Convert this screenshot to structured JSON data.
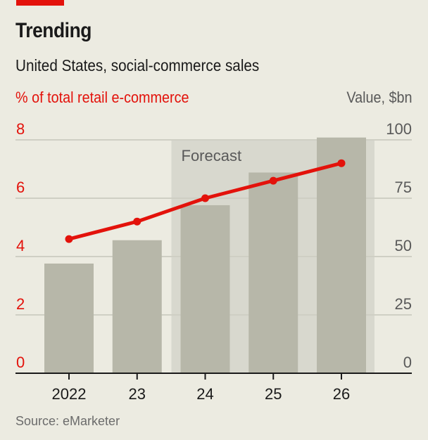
{
  "header": {
    "title": "Trending",
    "subtitle": "United States, social-commerce sales",
    "left_axis_label": "% of total retail e-commerce",
    "right_axis_label": "Value, $bn"
  },
  "source": "Source: eMarketer",
  "colors": {
    "accent_red": "#e3120b",
    "bar": "#b7b7a9",
    "forecast_shade": "#d8d8ce",
    "background": "#ecebe1",
    "grid": "#cfcfc4"
  },
  "chart_data": {
    "type": "bar+line",
    "title": "Trending",
    "subtitle": "United States, social-commerce sales",
    "categories": [
      "2022",
      "23",
      "24",
      "25",
      "26"
    ],
    "series": [
      {
        "name": "Value, $bn",
        "type": "bar",
        "axis": "right",
        "values": [
          47,
          57,
          72,
          86,
          101
        ]
      },
      {
        "name": "% of total retail e-commerce",
        "type": "line",
        "axis": "left",
        "values": [
          4.6,
          5.2,
          6.0,
          6.6,
          7.2
        ]
      }
    ],
    "left_axis": {
      "label": "% of total retail e-commerce",
      "range": [
        0,
        8
      ],
      "ticks": [
        "0",
        "2",
        "4",
        "6",
        "8"
      ]
    },
    "right_axis": {
      "label": "Value, $bn",
      "range": [
        0,
        100
      ],
      "ticks": [
        "0",
        "25",
        "50",
        "75",
        "100"
      ]
    },
    "annotations": [
      {
        "text": "Forecast",
        "from_category": "24",
        "to_category": "26"
      }
    ],
    "grid": true
  }
}
